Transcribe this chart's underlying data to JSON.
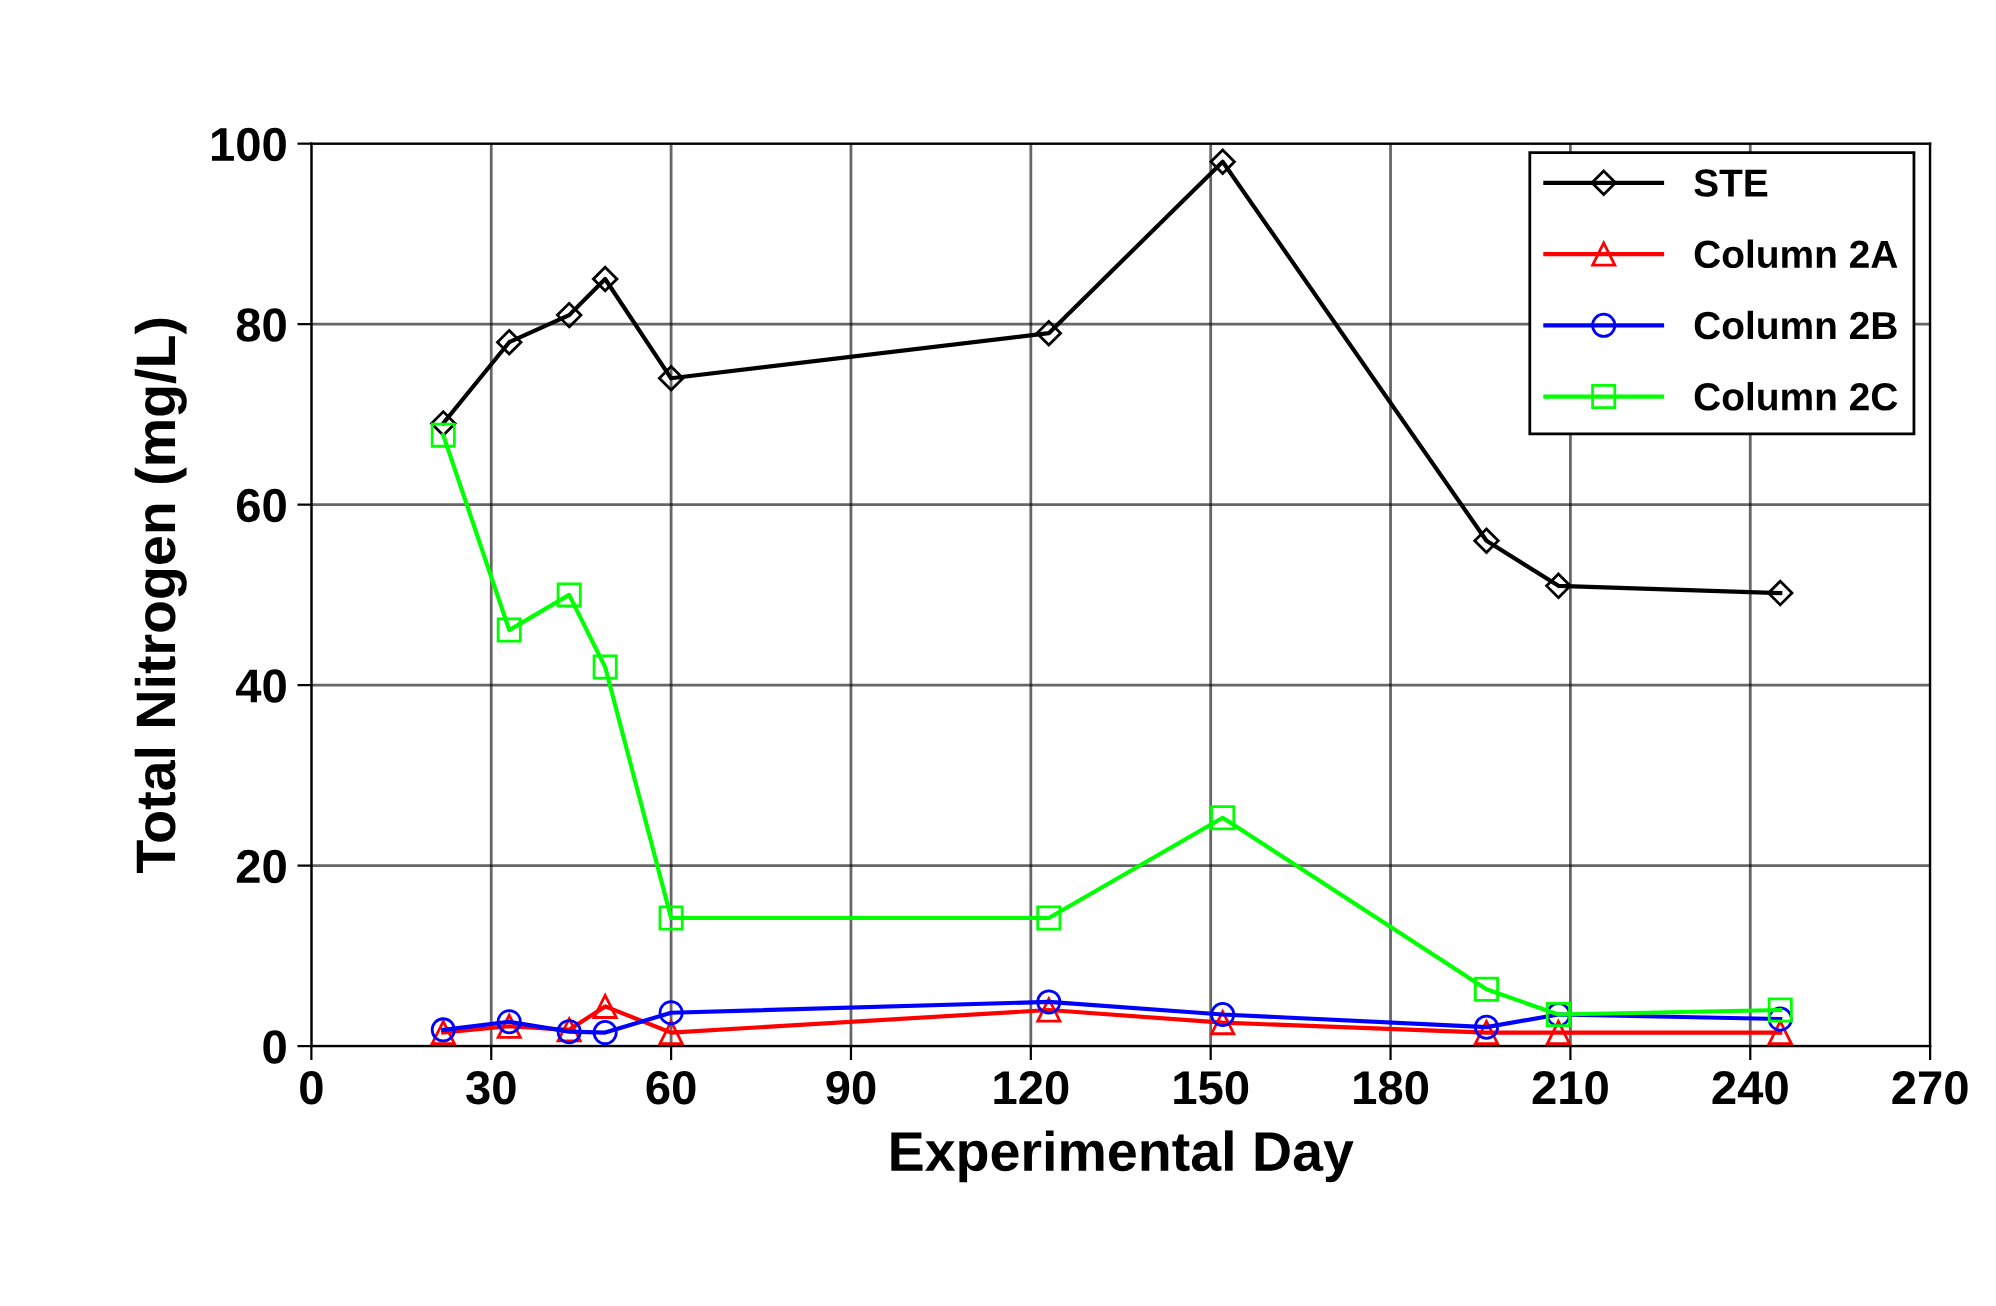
{
  "chart_data": {
    "type": "line",
    "xlabel": "Experimental Day",
    "ylabel": "Total Nitrogen (mg/L)",
    "x": [
      22,
      33,
      43,
      49,
      60,
      123,
      152,
      196,
      208,
      245
    ],
    "series": [
      {
        "name": "STE",
        "color": "#000000",
        "marker": "diamond",
        "values": [
          69,
          78,
          81,
          85,
          74,
          79,
          98,
          56,
          51,
          50.2
        ]
      },
      {
        "name": "Column 2A",
        "color": "#ff0000",
        "marker": "triangle",
        "values": [
          1.5,
          2.2,
          1.8,
          4.4,
          1.5,
          4,
          2.6,
          1.5,
          1.5,
          1.5
        ]
      },
      {
        "name": "Column 2B",
        "color": "#0000ff",
        "marker": "circle",
        "values": [
          1.8,
          2.7,
          1.6,
          1.5,
          3.7,
          4.9,
          3.5,
          2.1,
          3.5,
          3
        ]
      },
      {
        "name": "Column 2C",
        "color": "#00ff00",
        "marker": "square",
        "values": [
          67.7,
          46.1,
          50,
          42,
          14.2,
          14.2,
          25.3,
          6.3,
          3.5,
          4
        ]
      }
    ],
    "xlim": [
      0,
      270
    ],
    "xticks": [
      0,
      30,
      60,
      90,
      120,
      150,
      180,
      210,
      240,
      270
    ],
    "ylim": [
      0,
      100
    ],
    "yticks": [
      0,
      20,
      40,
      60,
      80,
      100
    ],
    "grid": true,
    "legend": "top right",
    "line_style": "solid"
  }
}
